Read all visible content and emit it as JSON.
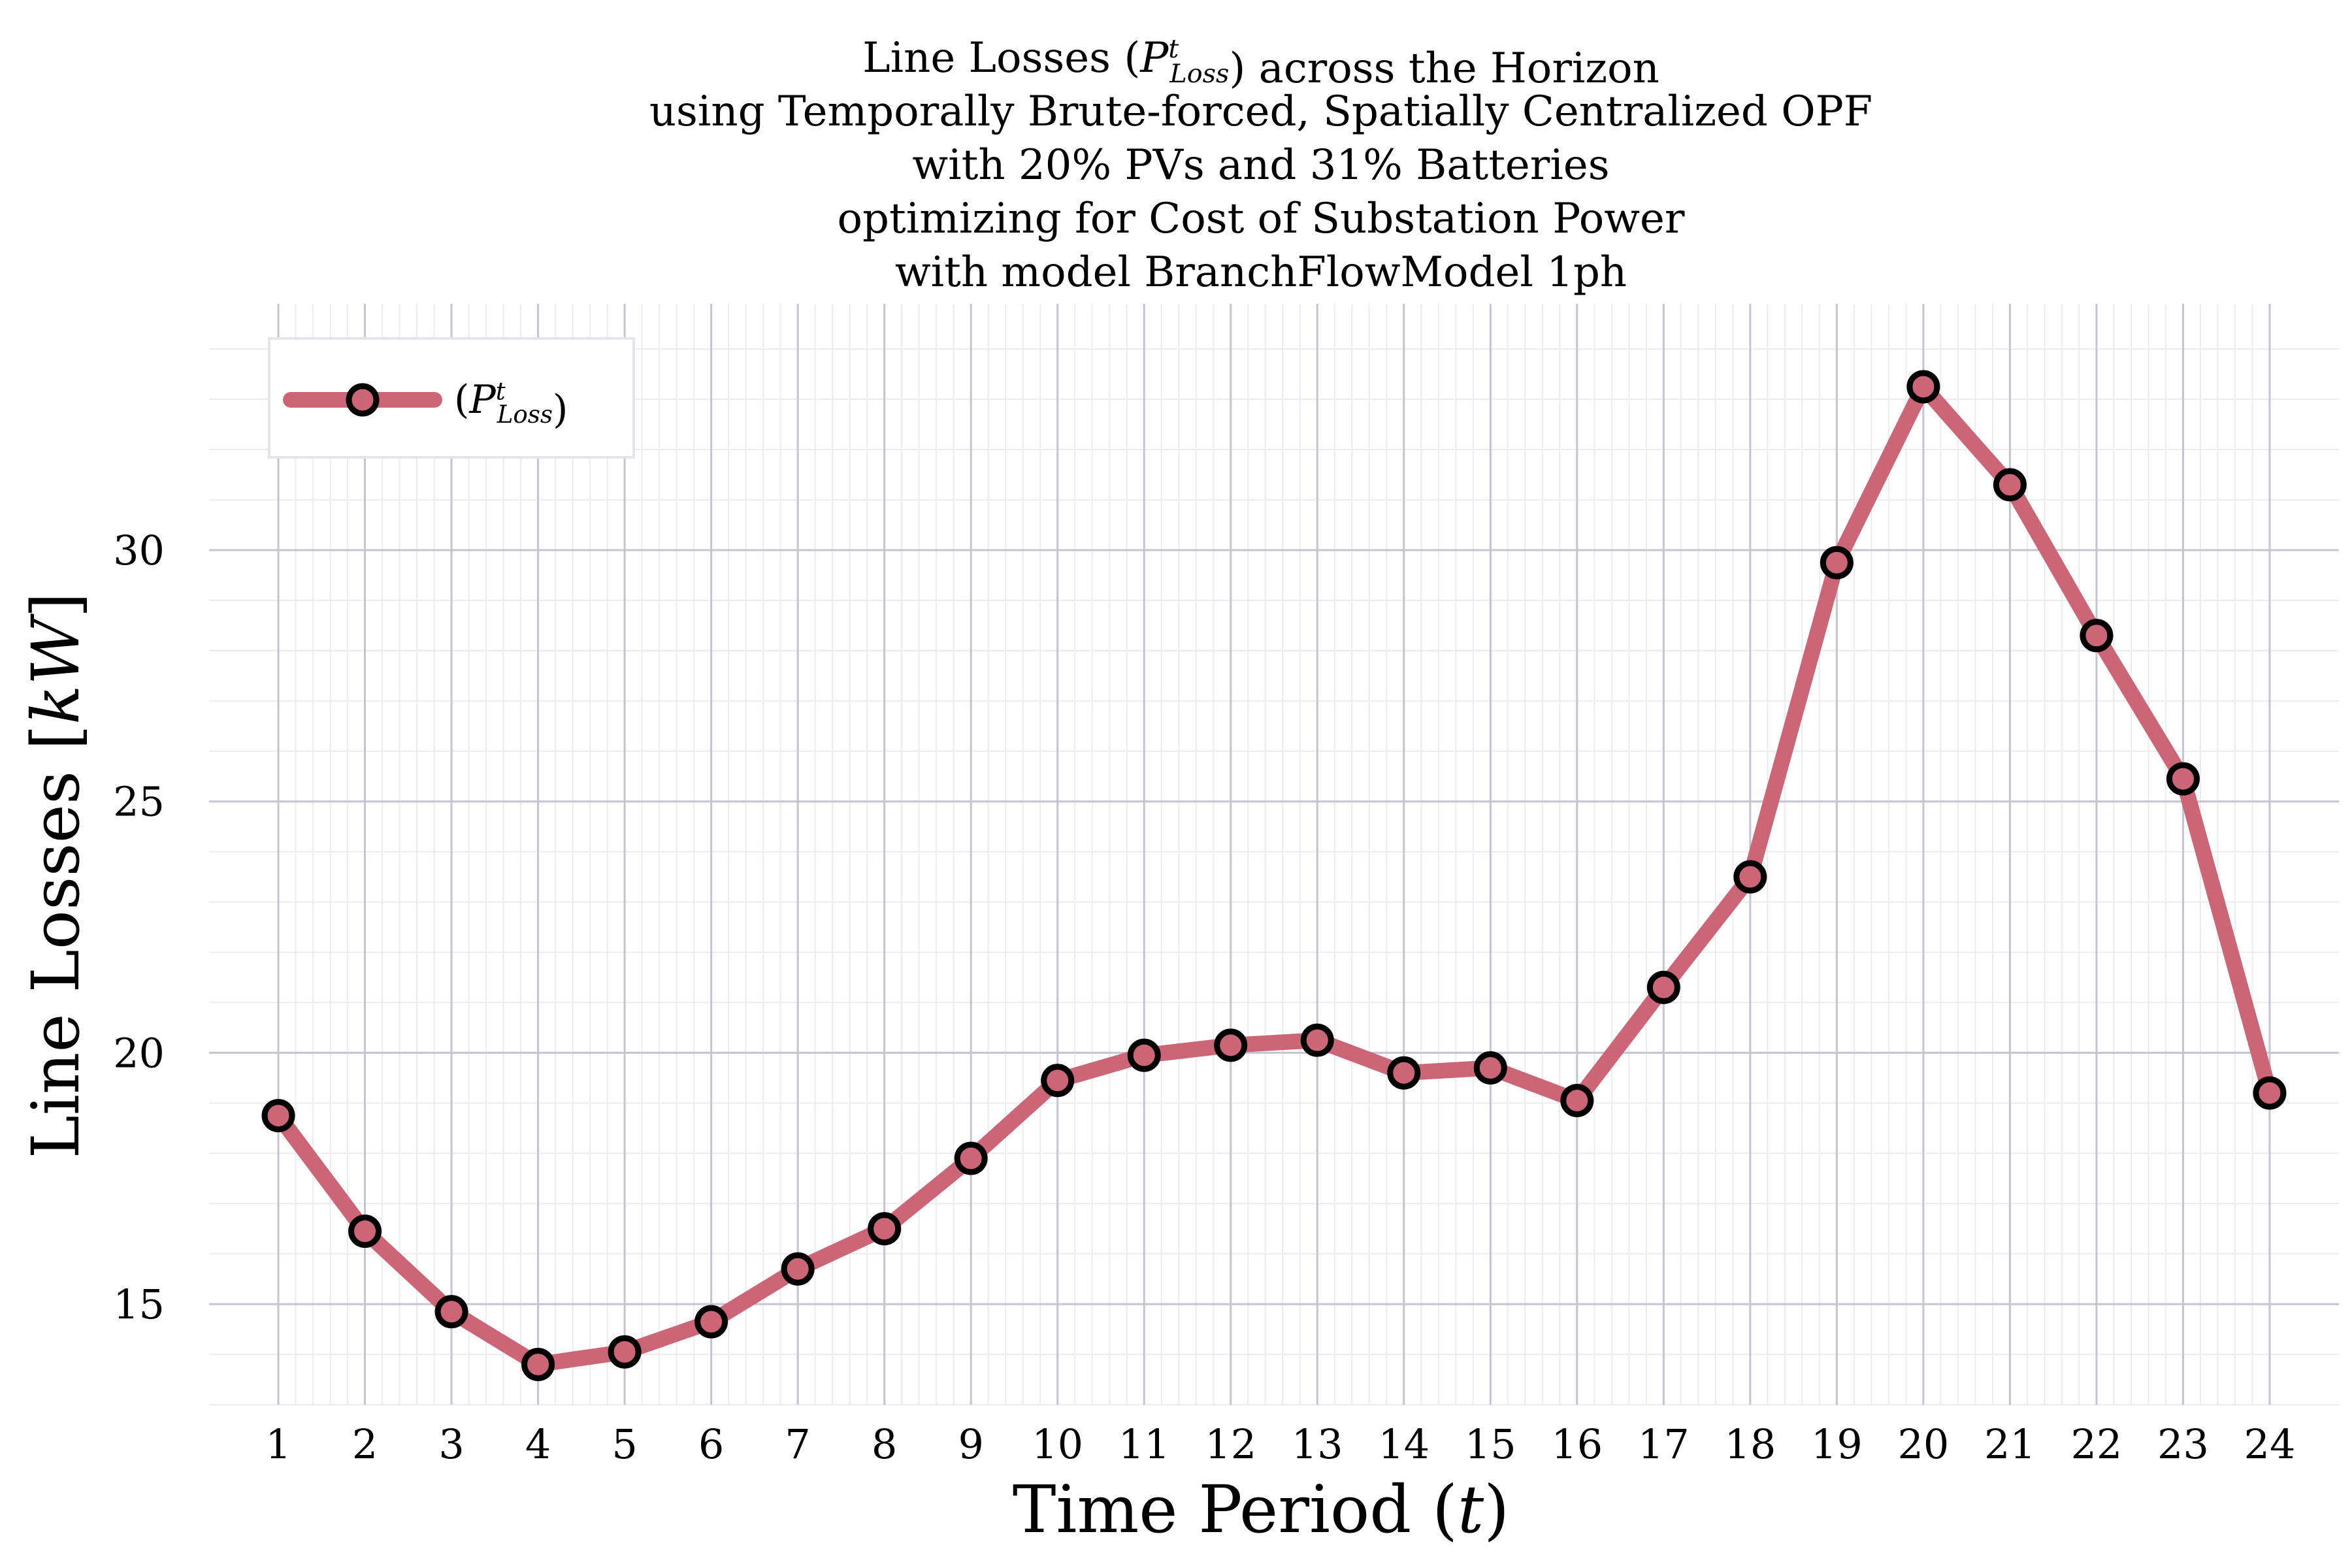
{
  "chart_data": {
    "type": "line",
    "title_lines": [
      "Line Losses (P^t_Loss) across the Horizon",
      "using Temporally Brute-forced, Spatially Centralized OPF",
      "with 20% PVs and 31% Batteries",
      "optimizing for Cost of Substation Power",
      "with model BranchFlowModel 1ph"
    ],
    "xlabel": "Time Period (t)",
    "ylabel": "Line Losses [kW]",
    "x": [
      1,
      2,
      3,
      4,
      5,
      6,
      7,
      8,
      9,
      10,
      11,
      12,
      13,
      14,
      15,
      16,
      17,
      18,
      19,
      20,
      21,
      22,
      23,
      24
    ],
    "xticks": [
      1,
      2,
      3,
      4,
      5,
      6,
      7,
      8,
      9,
      10,
      11,
      12,
      13,
      14,
      15,
      16,
      17,
      18,
      19,
      20,
      21,
      22,
      23,
      24
    ],
    "yticks": [
      15,
      20,
      25,
      30
    ],
    "xlim": [
      0.2,
      24.8
    ],
    "ylim": [
      13.0,
      34.9
    ],
    "grid": true,
    "legend_position": "top-left",
    "series": [
      {
        "name": "(P^t_Loss)",
        "color": "#cc6677",
        "values": [
          18.75,
          16.45,
          14.85,
          13.8,
          14.05,
          14.65,
          15.7,
          16.5,
          17.9,
          19.45,
          19.95,
          20.15,
          20.25,
          19.6,
          19.7,
          19.05,
          21.3,
          23.5,
          29.75,
          33.25,
          31.3,
          28.3,
          25.45,
          19.2
        ]
      }
    ]
  }
}
